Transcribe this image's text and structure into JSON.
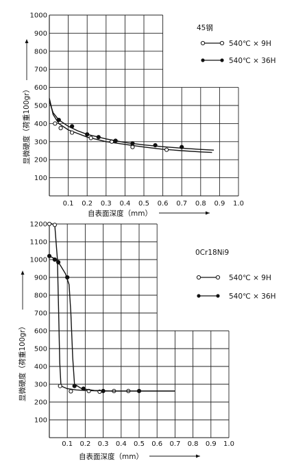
{
  "chart_data": [
    {
      "type": "line",
      "title": "45钢",
      "xlabel": "自表面深度（mm）",
      "ylabel": "显微硬度（荷重100gr）",
      "xlim": [
        0,
        1.0
      ],
      "ylim": [
        0,
        1000
      ],
      "x_ticks": [
        "0.1",
        "0.2",
        "0.3",
        "0.4",
        "0.5",
        "0.6",
        "0.7",
        "0.8",
        "0.9",
        "1.0"
      ],
      "y_ticks": [
        "100",
        "200",
        "300",
        "400",
        "500",
        "600",
        "700",
        "800",
        "900",
        "1000"
      ],
      "legend_position": "top-right",
      "series": [
        {
          "name": "540℃ × 9H",
          "marker": "open",
          "points": [
            [
              0.03,
              400
            ],
            [
              0.06,
              375
            ],
            [
              0.12,
              350
            ],
            [
              0.22,
              320
            ],
            [
              0.33,
              300
            ],
            [
              0.44,
              270
            ],
            [
              0.62,
              255
            ]
          ],
          "curve": [
            [
              0.0,
              540
            ],
            [
              0.02,
              450
            ],
            [
              0.05,
              400
            ],
            [
              0.1,
              365
            ],
            [
              0.15,
              345
            ],
            [
              0.2,
              325
            ],
            [
              0.3,
              300
            ],
            [
              0.4,
              285
            ],
            [
              0.5,
              270
            ],
            [
              0.6,
              258
            ],
            [
              0.7,
              250
            ],
            [
              0.8,
              243
            ],
            [
              0.86,
              240
            ]
          ]
        },
        {
          "name": "540℃ × 36H",
          "marker": "filled",
          "points": [
            [
              0.05,
              420
            ],
            [
              0.12,
              385
            ],
            [
              0.2,
              340
            ],
            [
              0.26,
              325
            ],
            [
              0.35,
              305
            ],
            [
              0.44,
              290
            ],
            [
              0.56,
              280
            ],
            [
              0.7,
              270
            ]
          ],
          "curve": [
            [
              0.0,
              525
            ],
            [
              0.02,
              460
            ],
            [
              0.05,
              420
            ],
            [
              0.1,
              385
            ],
            [
              0.15,
              360
            ],
            [
              0.2,
              340
            ],
            [
              0.3,
              315
            ],
            [
              0.4,
              295
            ],
            [
              0.5,
              282
            ],
            [
              0.6,
              272
            ],
            [
              0.7,
              264
            ],
            [
              0.8,
              257
            ],
            [
              0.87,
              253
            ]
          ]
        }
      ]
    },
    {
      "type": "line",
      "title": "0Cr18Ni9",
      "xlabel": "自表面深度（mm）",
      "ylabel": "显微硬度（荷重100gr）",
      "xlim": [
        0,
        1.0
      ],
      "ylim": [
        0,
        1200
      ],
      "x_ticks": [
        "0.1",
        "0.2",
        "0.3",
        "0.4",
        "0.5",
        "0.6",
        "0.7",
        "0.8",
        "0.9",
        "1.0"
      ],
      "y_ticks": [
        "100",
        "200",
        "300",
        "400",
        "500",
        "600",
        "700",
        "800",
        "900",
        "1000",
        "1100",
        "1200"
      ],
      "legend_position": "right",
      "series": [
        {
          "name": "540℃ × 9H",
          "marker": "open",
          "points": [
            [
              0.0,
              1200
            ],
            [
              0.03,
              1195
            ],
            [
              0.06,
              290
            ],
            [
              0.12,
              260
            ],
            [
              0.22,
              262
            ],
            [
              0.28,
              258
            ],
            [
              0.36,
              262
            ],
            [
              0.44,
              262
            ]
          ],
          "curve": [
            [
              0.0,
              1205
            ],
            [
              0.03,
              1195
            ],
            [
              0.045,
              1000
            ],
            [
              0.052,
              700
            ],
            [
              0.058,
              420
            ],
            [
              0.065,
              290
            ],
            [
              0.1,
              275
            ],
            [
              0.15,
              268
            ],
            [
              0.2,
              265
            ],
            [
              0.3,
              262
            ],
            [
              0.4,
              262
            ],
            [
              0.5,
              262
            ],
            [
              0.6,
              262
            ],
            [
              0.7,
              262
            ]
          ]
        },
        {
          "name": "540℃ × 36H",
          "marker": "filled",
          "points": [
            [
              0.0,
              1020
            ],
            [
              0.03,
              1000
            ],
            [
              0.05,
              985
            ],
            [
              0.1,
              900
            ],
            [
              0.14,
              290
            ],
            [
              0.19,
              275
            ],
            [
              0.3,
              262
            ],
            [
              0.5,
              262
            ]
          ],
          "curve": [
            [
              0.0,
              1020
            ],
            [
              0.03,
              1005
            ],
            [
              0.06,
              970
            ],
            [
              0.09,
              920
            ],
            [
              0.11,
              860
            ],
            [
              0.12,
              700
            ],
            [
              0.13,
              450
            ],
            [
              0.14,
              300
            ],
            [
              0.18,
              275
            ],
            [
              0.25,
              265
            ],
            [
              0.35,
              262
            ],
            [
              0.5,
              262
            ],
            [
              0.7,
              262
            ]
          ]
        }
      ]
    }
  ]
}
